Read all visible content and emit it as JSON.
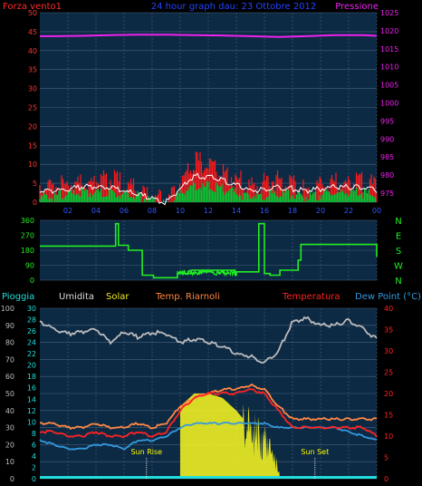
{
  "header": {
    "left_title": "Forza vento1",
    "center_title": "24 hour graph dau: 23 Ottobre 2012",
    "right_title": "Pressione"
  },
  "colors": {
    "wind": "#ff1a1a",
    "wind_avg": "#00cc33",
    "wind_gust_line": "#ffffff",
    "pressure": "#ee22ee",
    "dir": "#22ee22",
    "humidity": "#bbbbbb",
    "temp": "#ff2222",
    "app_temp": "#ff8844",
    "dew": "#3399dd",
    "solar": "#eeee22",
    "rain": "#22dddd",
    "panel_bg": "#0d2a45",
    "grid": "#46607a",
    "sun": "#ffff00"
  },
  "legend": {
    "rain": "Pioggia",
    "humidity": "Umidita",
    "solar": "Solar",
    "app_temp": "Temp. Riarnoli",
    "temp": "Temperatura",
    "dew": "Dew Point (°C)"
  },
  "chart_data": [
    {
      "type": "line",
      "name": "wind-pressure",
      "x_ticks": [
        "02",
        "04",
        "06",
        "08",
        "10",
        "12",
        "14",
        "16",
        "18",
        "20",
        "22",
        "00"
      ],
      "y_left_ticks": [
        "0",
        "5",
        "10",
        "15",
        "20",
        "25",
        "30",
        "35",
        "40",
        "45",
        "50"
      ],
      "y_right_ticks": [
        "975",
        "980",
        "985",
        "990",
        "995",
        "1000",
        "1005",
        "1010",
        "1015",
        "1020",
        "1025"
      ],
      "ylim_left": [
        0,
        50
      ],
      "ylim_right": [
        972.5,
        1025
      ],
      "x": [
        1,
        3,
        5,
        7,
        9,
        11,
        13,
        15,
        17,
        19,
        21,
        23,
        24
      ],
      "series": [
        {
          "role": "pressure",
          "values": [
            1018.5,
            1018.6,
            1018.8,
            1018.9,
            1018.9,
            1018.8,
            1018.7,
            1018.5,
            1018.3,
            1018.5,
            1018.8,
            1018.8,
            1018.6
          ]
        },
        {
          "role": "wind-gust",
          "values": [
            5,
            6,
            7,
            4,
            1,
            12,
            9,
            5,
            7,
            4,
            6,
            6,
            5
          ]
        },
        {
          "role": "wind-avg",
          "values": [
            2,
            3,
            3,
            2,
            0,
            5,
            4,
            2,
            3,
            2,
            3,
            3,
            2
          ]
        },
        {
          "role": "wind-gust-avg",
          "values": [
            3,
            4,
            4,
            2,
            0,
            7,
            6,
            3,
            4,
            3,
            4,
            4,
            3
          ]
        }
      ]
    },
    {
      "type": "line",
      "name": "wind-direction",
      "x_ticks": [
        "02",
        "04",
        "06",
        "08",
        "10",
        "12",
        "14",
        "16",
        "18",
        "20",
        "22",
        "00"
      ],
      "y_left_ticks": [
        "0",
        "90",
        "180",
        "270",
        "360"
      ],
      "y_right_ticks": [
        "N",
        "W",
        "S",
        "E",
        "N"
      ],
      "ylim": [
        0,
        360
      ],
      "x": [
        0,
        5.3,
        5.4,
        5.6,
        6.3,
        7.3,
        8.1,
        9.8,
        10.8,
        13.9,
        14.0,
        15.6,
        16.0,
        16.4,
        17.1,
        18.4,
        18.6,
        23.6,
        24
      ],
      "values": [
        205,
        205,
        340,
        210,
        180,
        30,
        15,
        40,
        60,
        30,
        50,
        340,
        40,
        30,
        60,
        120,
        215,
        215,
        140
      ]
    },
    {
      "type": "line",
      "name": "temperature-humidity-solar",
      "legend": [
        "Pioggia",
        "Umidita",
        "Solar",
        "Temp. Riarnoli",
        "Temperatura",
        "Dew Point (°C)"
      ],
      "y_left_ticks": [
        "0",
        "10",
        "20",
        "30",
        "40",
        "50",
        "60",
        "70",
        "80",
        "90",
        "100"
      ],
      "y_inner_ticks": [
        "0",
        "2",
        "4",
        "6",
        "8",
        "10",
        "12",
        "14",
        "16",
        "18",
        "20",
        "22",
        "24",
        "26",
        "28",
        "30"
      ],
      "y_right_ticks": [
        "0",
        "5",
        "10",
        "15",
        "20",
        "25",
        "30",
        "35",
        "40"
      ],
      "ylim_left": [
        0,
        100
      ],
      "ylim_right": [
        0,
        40
      ],
      "annotations": [
        {
          "text": "Sun Rise",
          "x": 7.6
        },
        {
          "text": "Sun Set",
          "x": 19.6
        }
      ],
      "x": [
        0,
        1,
        2,
        3,
        4,
        5,
        6,
        7,
        8,
        9,
        10,
        11,
        12,
        13,
        14,
        15,
        16,
        17,
        18,
        19,
        20,
        21,
        22,
        23,
        24
      ],
      "series": [
        {
          "role": "humidity",
          "values": [
            92,
            88,
            85,
            86,
            88,
            80,
            86,
            83,
            86,
            85,
            80,
            82,
            80,
            78,
            73,
            72,
            68,
            75,
            92,
            94,
            90,
            90,
            93,
            88,
            82
          ]
        },
        {
          "role": "app-temp",
          "values": [
            13,
            13,
            12,
            12,
            13,
            12,
            12,
            13,
            12,
            13,
            17,
            19,
            20,
            21,
            21,
            22,
            21,
            17,
            14,
            14,
            14,
            14,
            14,
            14,
            14
          ]
        },
        {
          "role": "temp",
          "values": [
            11,
            11,
            10,
            10,
            11,
            10,
            10,
            11,
            10,
            11,
            16,
            19,
            20,
            20,
            20,
            21,
            20,
            16,
            12,
            12,
            12,
            12,
            12,
            12,
            10
          ]
        },
        {
          "role": "dew",
          "values": [
            9,
            8,
            7,
            7,
            8,
            8,
            7,
            9,
            9,
            10,
            12,
            13,
            13,
            13,
            13,
            13,
            13,
            12,
            12,
            12,
            12,
            12,
            11,
            10,
            9
          ]
        },
        {
          "role": "solar",
          "values": [
            0,
            0,
            0,
            0,
            0,
            0,
            0,
            0,
            0,
            0,
            17,
            20,
            20,
            19,
            16,
            12,
            10,
            3,
            0,
            0,
            0,
            0,
            0,
            0,
            0
          ]
        },
        {
          "role": "rain",
          "values": [
            0.3,
            0.3,
            0.3,
            0.3,
            0.3,
            0.3,
            0.3,
            0.3,
            0.3,
            0.3,
            0.3,
            0.3,
            0.3,
            0.3,
            0.3,
            0.3,
            0.3,
            0.3,
            0.3,
            0.3,
            0.3,
            0.3,
            0.3,
            0.3,
            0.3
          ]
        }
      ]
    }
  ]
}
